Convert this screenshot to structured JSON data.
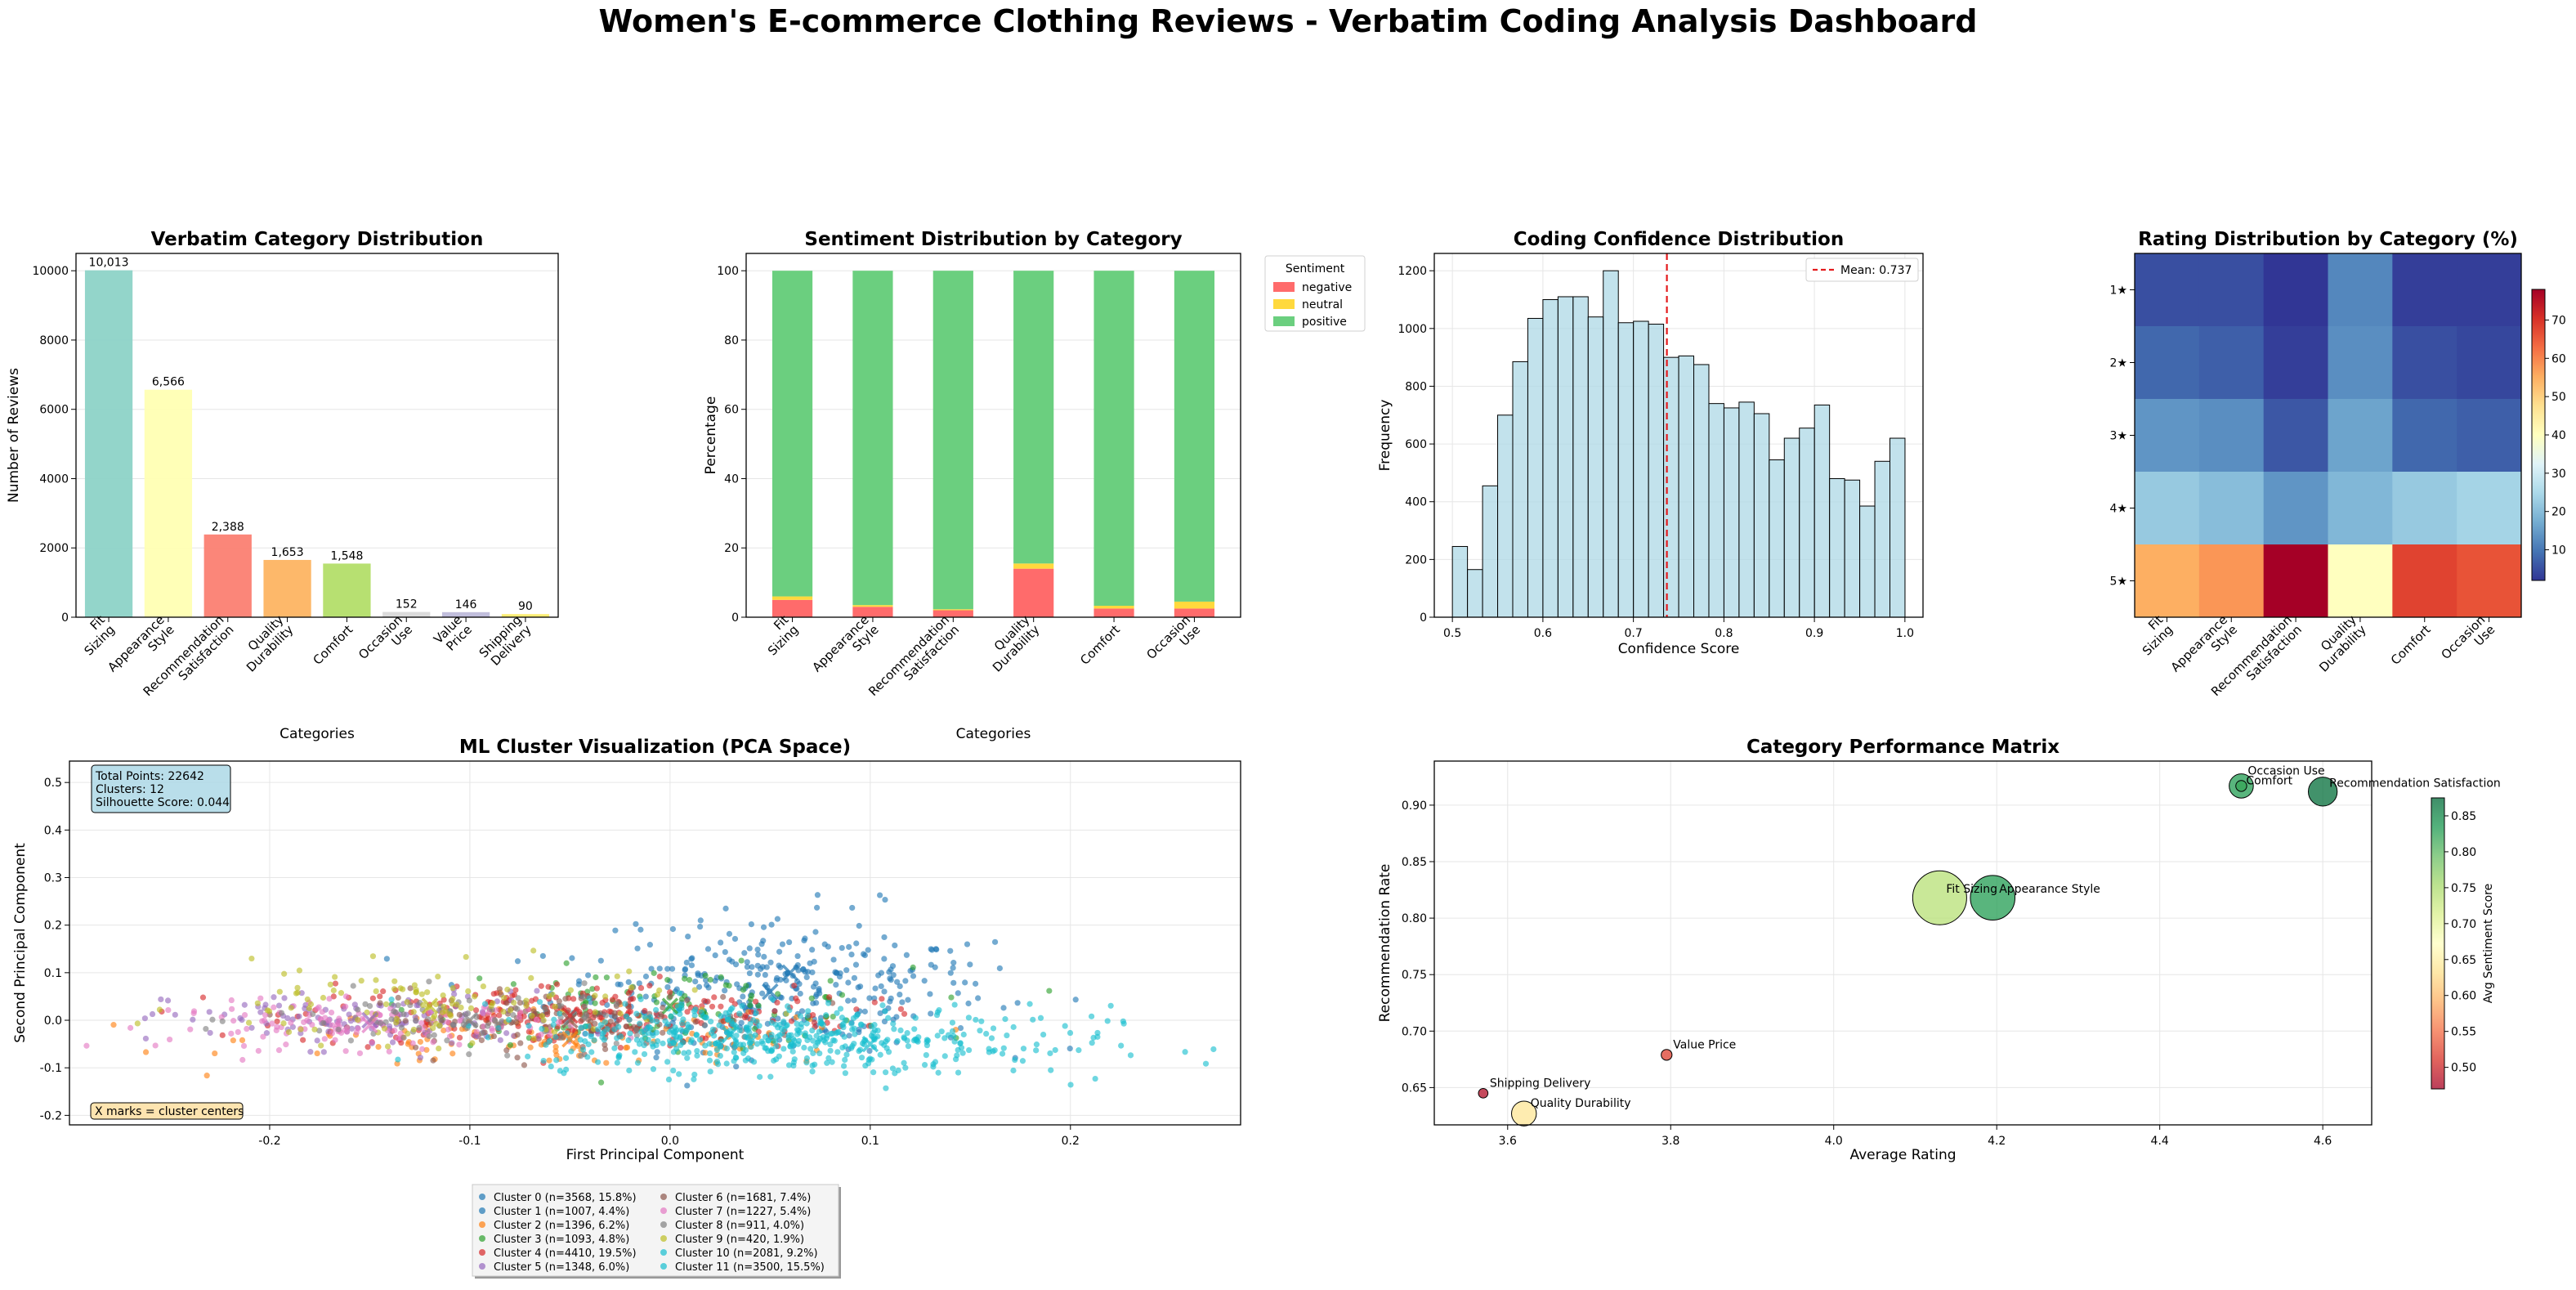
{
  "dashboard": {
    "title": "Women's E-commerce Clothing Reviews - Verbatim Coding Analysis Dashboard"
  },
  "chart_data": [
    {
      "id": "category",
      "type": "bar",
      "title": "Verbatim Category Distribution",
      "xlabel": "Categories",
      "ylabel": "Number of Reviews",
      "categories": [
        "Fit\nSizing",
        "Appearance\nStyle",
        "Recommendation\nSatisfaction",
        "Quality\nDurability",
        "Comfort",
        "Occasion\nUse",
        "Value\nPrice",
        "Shipping\nDelivery"
      ],
      "values": [
        10013,
        6566,
        2388,
        1653,
        1548,
        152,
        146,
        90
      ],
      "value_labels": [
        "10,013",
        "6,566",
        "2,388",
        "1,653",
        "1,548",
        "152",
        "146",
        "90"
      ],
      "colors": [
        "#8dd3c7",
        "#ffffb3",
        "#fb8072",
        "#fdb462",
        "#b3de69",
        "#d9d9d9",
        "#bebada",
        "#ffed6f"
      ],
      "ylim": [
        0,
        10500
      ],
      "yticks": [
        0,
        2000,
        4000,
        6000,
        8000,
        10000
      ],
      "grid": true
    },
    {
      "id": "sentiment",
      "type": "bar",
      "stacked": true,
      "title": "Sentiment Distribution by Category",
      "xlabel": "Categories",
      "ylabel": "Percentage",
      "categories": [
        "Fit\nSizing",
        "Appearance\nStyle",
        "Recommendation\nSatisfaction",
        "Quality\nDurability",
        "Comfort",
        "Occasion\nUse"
      ],
      "series": [
        {
          "name": "negative",
          "color": "#ff6b6b",
          "values": [
            5.0,
            3.0,
            2.0,
            14.0,
            2.5,
            2.5
          ]
        },
        {
          "name": "neutral",
          "color": "#ffd93d",
          "values": [
            1.0,
            0.5,
            0.3,
            1.5,
            0.8,
            2.0
          ]
        },
        {
          "name": "positive",
          "color": "#6bcf7f",
          "values": [
            94.0,
            96.5,
            97.7,
            84.5,
            96.7,
            95.5
          ]
        }
      ],
      "legend_title": "Sentiment",
      "legend_position": "outside-right",
      "ylim": [
        0,
        105
      ],
      "yticks": [
        0,
        20,
        40,
        60,
        80,
        100
      ],
      "grid": true
    },
    {
      "id": "confidence",
      "type": "histogram",
      "title": "Coding Confidence Distribution",
      "xlabel": "Confidence Score",
      "ylabel": "Frequency",
      "bin_start": 0.5,
      "bin_width": 0.01667,
      "counts": [
        245,
        165,
        455,
        700,
        885,
        1035,
        1100,
        1110,
        1110,
        1040,
        1200,
        1020,
        1025,
        1015,
        900,
        905,
        875,
        740,
        725,
        745,
        705,
        545,
        620,
        655,
        735,
        480,
        475,
        385,
        540,
        620
      ],
      "color": "#add8e6",
      "mean": 0.737,
      "mean_label": "Mean: 0.737",
      "xlim": [
        0.48,
        1.02
      ],
      "ylim": [
        0,
        1260
      ],
      "xticks": [
        0.5,
        0.6,
        0.7,
        0.8,
        0.9,
        1.0
      ],
      "yticks": [
        0,
        200,
        400,
        600,
        800,
        1000,
        1200
      ],
      "legend_position": "top-right",
      "grid": true
    },
    {
      "id": "rating",
      "type": "heatmap",
      "title": "Rating Distribution by Category (%)",
      "columns": [
        "Fit\nSizing",
        "Appearance\nStyle",
        "Recommendation\nSatisfaction",
        "Quality\nDurability",
        "Comfort",
        "Occasion\nUse"
      ],
      "rows": [
        "1★",
        "2★",
        "3★",
        "4★",
        "5★"
      ],
      "values": [
        [
          5,
          5,
          2,
          12,
          3,
          3
        ],
        [
          8,
          7,
          3,
          13,
          5,
          4
        ],
        [
          14,
          13,
          6,
          16,
          8,
          7
        ],
        [
          22,
          20,
          14,
          19,
          22,
          24
        ],
        [
          55,
          58,
          78,
          40,
          68,
          66
        ]
      ],
      "vmin": 2,
      "vmax": 78,
      "colorbar_ticks": [
        10,
        20,
        30,
        40,
        50,
        60,
        70
      ],
      "colormap": "RdYlBu_r"
    },
    {
      "id": "clusters",
      "type": "scatter",
      "title": "ML Cluster Visualization (PCA Space)",
      "xlabel": "First Principal Component",
      "ylabel": "Second Principal Component",
      "xlim": [
        -0.3,
        0.285
      ],
      "ylim": [
        -0.22,
        0.545
      ],
      "xticks": [
        -0.2,
        -0.1,
        0.0,
        0.1,
        0.2
      ],
      "yticks": [
        -0.2,
        -0.1,
        0.0,
        0.1,
        0.2,
        0.3,
        0.4,
        0.5
      ],
      "info_lines": [
        "Total Points: 22642",
        "Clusters: 12",
        "Silhouette Score: 0.044"
      ],
      "centers_note": "X marks = cluster centers",
      "series": [
        {
          "name": "Cluster 0 (n=3568, 15.8%)",
          "color": "#1f77b4",
          "center": [
            0.05,
            0.06
          ],
          "spread": [
            0.055,
            0.06
          ],
          "n": 260
        },
        {
          "name": "Cluster 1 (n=1007, 4.4%)",
          "color": "#1f77b4",
          "center": [
            0.06,
            0.1
          ],
          "spread": [
            0.05,
            0.07
          ],
          "n": 90
        },
        {
          "name": "Cluster 2 (n=1396, 6.2%)",
          "color": "#ff7f0e",
          "center": [
            -0.05,
            -0.04
          ],
          "spread": [
            0.08,
            0.03
          ],
          "n": 130
        },
        {
          "name": "Cluster 3 (n=1093, 4.8%)",
          "color": "#2ca02c",
          "center": [
            0.0,
            0.03
          ],
          "spread": [
            0.06,
            0.04
          ],
          "n": 100
        },
        {
          "name": "Cluster 4 (n=4410, 19.5%)",
          "color": "#d62728",
          "center": [
            -0.05,
            0.01
          ],
          "spread": [
            0.07,
            0.035
          ],
          "n": 240
        },
        {
          "name": "Cluster 5 (n=1348, 6.0%)",
          "color": "#9467bd",
          "center": [
            -0.15,
            0.0
          ],
          "spread": [
            0.05,
            0.03
          ],
          "n": 120
        },
        {
          "name": "Cluster 6 (n=1681, 7.4%)",
          "color": "#8c564b",
          "center": [
            -0.05,
            0.0
          ],
          "spread": [
            0.05,
            0.03
          ],
          "n": 120
        },
        {
          "name": "Cluster 7 (n=1227, 5.4%)",
          "color": "#e377c2",
          "center": [
            -0.15,
            -0.01
          ],
          "spread": [
            0.05,
            0.025
          ],
          "n": 140
        },
        {
          "name": "Cluster 8 (n=911, 4.0%)",
          "color": "#7f7f7f",
          "center": [
            -0.1,
            0.0
          ],
          "spread": [
            0.05,
            0.03
          ],
          "n": 90
        },
        {
          "name": "Cluster 9 (n=420, 1.9%)",
          "color": "#bcbd22",
          "center": [
            -0.12,
            0.03
          ],
          "spread": [
            0.06,
            0.04
          ],
          "n": 120
        },
        {
          "name": "Cluster 10 (n=2081, 9.2%)",
          "color": "#17becf",
          "center": [
            0.1,
            -0.05
          ],
          "spread": [
            0.06,
            0.04
          ],
          "n": 180
        },
        {
          "name": "Cluster 11 (n=3500, 15.5%)",
          "color": "#17becf",
          "center": [
            0.03,
            -0.03
          ],
          "spread": [
            0.05,
            0.035
          ],
          "n": 330
        }
      ],
      "legend_position": "below",
      "grid": true
    },
    {
      "id": "performance",
      "type": "bubble",
      "title": "Category Performance Matrix",
      "xlabel": "Average Rating",
      "ylabel": "Recommendation Rate",
      "xlim": [
        3.51,
        4.66
      ],
      "ylim": [
        0.617,
        0.939
      ],
      "xticks": [
        3.6,
        3.8,
        4.0,
        4.2,
        4.4,
        4.6
      ],
      "yticks": [
        0.65,
        0.7,
        0.75,
        0.8,
        0.85,
        0.9
      ],
      "colorbar_label": "Avg Sentiment Score",
      "colorbar_ticks": [
        0.5,
        0.55,
        0.6,
        0.65,
        0.7,
        0.75,
        0.8,
        0.85
      ],
      "cmin": 0.47,
      "cmax": 0.875,
      "points": [
        {
          "label": "Fit Sizing",
          "x": 4.13,
          "y": 0.818,
          "size": 10013,
          "sentiment": 0.74
        },
        {
          "label": "Appearance Style",
          "x": 4.195,
          "y": 0.818,
          "size": 6566,
          "sentiment": 0.83
        },
        {
          "label": "Recommendation Satisfaction",
          "x": 4.6,
          "y": 0.912,
          "size": 2388,
          "sentiment": 0.87
        },
        {
          "label": "Comfort",
          "x": 4.5,
          "y": 0.917,
          "size": 1548,
          "sentiment": 0.83
        },
        {
          "label": "Occasion Use",
          "x": 4.5,
          "y": 0.917,
          "size": 152,
          "sentiment": 0.82
        },
        {
          "label": "Value Price",
          "x": 3.795,
          "y": 0.679,
          "size": 146,
          "sentiment": 0.52
        },
        {
          "label": "Shipping Delivery",
          "x": 3.57,
          "y": 0.645,
          "size": 90,
          "sentiment": 0.48
        },
        {
          "label": "Quality Durability",
          "x": 3.62,
          "y": 0.627,
          "size": 1653,
          "sentiment": 0.64
        }
      ],
      "grid": true
    }
  ]
}
